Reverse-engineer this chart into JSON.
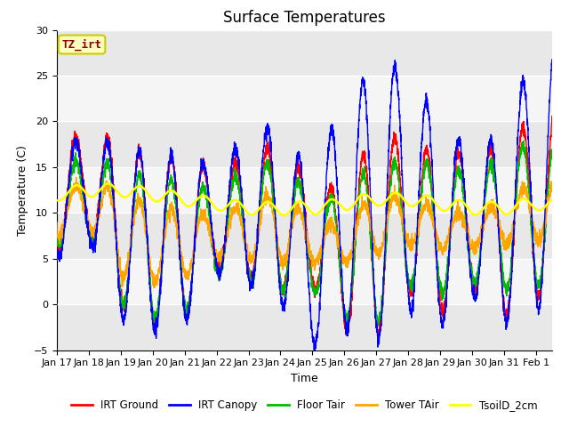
{
  "title": "Surface Temperatures",
  "xlabel": "Time",
  "ylabel": "Temperature (C)",
  "ylim": [
    -5,
    30
  ],
  "x_tick_labels": [
    "Jan 17",
    "Jan 18",
    "Jan 19",
    "Jan 20",
    "Jan 21",
    "Jan 22",
    "Jan 23",
    "Jan 24",
    "Jan 25",
    "Jan 26",
    "Jan 27",
    "Jan 28",
    "Jan 29",
    "Jan 30",
    "Jan 31",
    "Feb 1"
  ],
  "annotation_text": "TZ_irt",
  "annotation_color": "#8B0000",
  "annotation_bg": "#FFFFC0",
  "annotation_edge": "#CCCC00",
  "colors": {
    "IRT Ground": "#FF0000",
    "IRT Canopy": "#0000FF",
    "Floor Tair": "#00BB00",
    "Tower TAir": "#FFA500",
    "TsoilD_2cm": "#FFFF00"
  },
  "legend_labels": [
    "IRT Ground",
    "IRT Canopy",
    "Floor Tair",
    "Tower TAir",
    "TsoilD_2cm"
  ],
  "plot_bg": "#E8E8E8",
  "band_color": "#D0D0D0",
  "title_fontsize": 12,
  "axis_fontsize": 9,
  "tick_fontsize": 8,
  "linewidth": 1.0
}
